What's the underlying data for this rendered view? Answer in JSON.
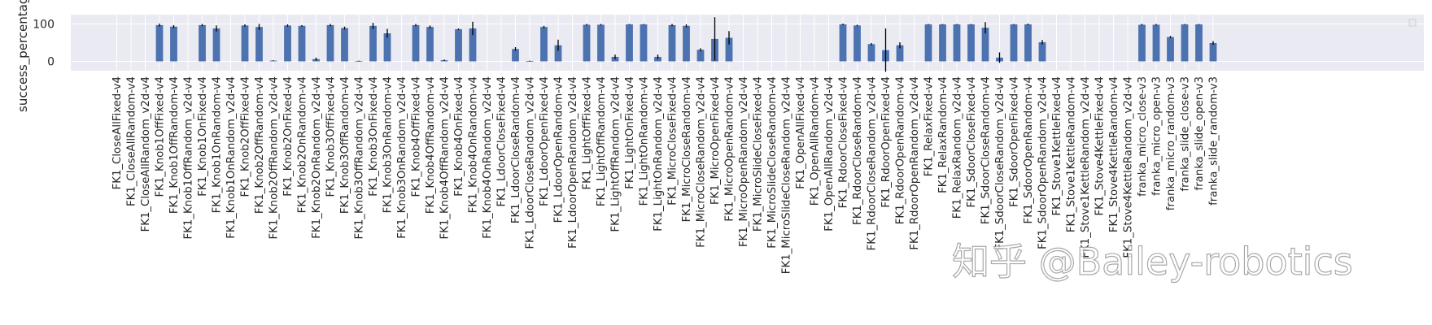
{
  "chart_data": {
    "type": "bar",
    "ylabel": "success_percentage",
    "yticks": [
      0,
      100
    ],
    "ylim": [
      -25,
      125
    ],
    "grid": true,
    "legend": "top-right (empty)",
    "bar_color": "#4c72b0",
    "error_color": "#000000",
    "background": "#eaeaf2",
    "categories": [
      "FK1_CloseAllFixed-v4",
      "FK1_CloseAllRandom-v4",
      "FK1_CloseAllRandom_v2d-v4",
      "FK1_Knob1OffFixed-v4",
      "FK1_Knob1OffRandom-v4",
      "FK1_Knob1OffRandom_v2d-v4",
      "FK1_Knob1OnFixed-v4",
      "FK1_Knob1OnRandom-v4",
      "FK1_Knob1OnRandom_v2d-v4",
      "FK1_Knob2OffFixed-v4",
      "FK1_Knob2OffRandom-v4",
      "FK1_Knob2OffRandom_v2d-v4",
      "FK1_Knob2OnFixed-v4",
      "FK1_Knob2OnRandom-v4",
      "FK1_Knob2OnRandom_v2d-v4",
      "FK1_Knob3OffFixed-v4",
      "FK1_Knob3OffRandom-v4",
      "FK1_Knob3OffRandom_v2d-v4",
      "FK1_Knob3OnFixed-v4",
      "FK1_Knob3OnRandom-v4",
      "FK1_Knob3OnRandom_v2d-v4",
      "FK1_Knob4OffFixed-v4",
      "FK1_Knob4OffRandom-v4",
      "FK1_Knob4OffRandom_v2d-v4",
      "FK1_Knob4OnFixed-v4",
      "FK1_Knob4OnRandom-v4",
      "FK1_Knob4OnRandom_v2d-v4",
      "FK1_LdoorCloseFixed-v4",
      "FK1_LdoorCloseRandom-v4",
      "FK1_LdoorCloseRandom_v2d-v4",
      "FK1_LdoorOpenFixed-v4",
      "FK1_LdoorOpenRandom-v4",
      "FK1_LdoorOpenRandom_v2d-v4",
      "FK1_LightOffFixed-v4",
      "FK1_LightOffRandom-v4",
      "FK1_LightOffRandom_v2d-v4",
      "FK1_LightOnFixed-v4",
      "FK1_LightOnRandom-v4",
      "FK1_LightOnRandom_v2d-v4",
      "FK1_MicroCloseFixed-v4",
      "FK1_MicroCloseRandom-v4",
      "FK1_MicroCloseRandom_v2d-v4",
      "FK1_MicroOpenFixed-v4",
      "FK1_MicroOpenRandom-v4",
      "FK1_MicroOpenRandom_v2d-v4",
      "FK1_MicroSlideCloseFixed-v4",
      "FK1_MicroSlideCloseRandom-v4",
      "FK1_MicroSlideCloseRandom_v2d-v4",
      "FK1_OpenAllFixed-v4",
      "FK1_OpenAllRandom-v4",
      "FK1_OpenAllRandom_v2d-v4",
      "FK1_RdoorCloseFixed-v4",
      "FK1_RdoorCloseRandom-v4",
      "FK1_RdoorCloseRandom_v2d-v4",
      "FK1_RdoorOpenFixed-v4",
      "FK1_RdoorOpenRandom-v4",
      "FK1_RdoorOpenRandom_v2d-v4",
      "FK1_RelaxFixed-v4",
      "FK1_RelaxRandom-v4",
      "FK1_RelaxRandom_v2d-v4",
      "FK1_SdoorCloseFixed-v4",
      "FK1_SdoorCloseRandom-v4",
      "FK1_SdoorCloseRandom_v2d-v4",
      "FK1_SdoorOpenFixed-v4",
      "FK1_SdoorOpenRandom-v4",
      "FK1_SdoorOpenRandom_v2d-v4",
      "FK1_Stove1KettleFixed-v4",
      "FK1_Stove1KettleRandom-v4",
      "FK1_Stove1KettleRandom_v2d-v4",
      "FK1_Stove4KettleFixed-v4",
      "FK1_Stove4KettleRandom-v4",
      "FK1_Stove4KettleRandom_v2d-v4",
      "franka_micro_close-v3",
      "franka_micro_open-v3",
      "franka_micro_random-v3",
      "franka_slide_close-v3",
      "franka_slide_open-v3",
      "franka_slide_random-v3"
    ],
    "values": [
      0,
      0,
      0,
      97,
      93,
      0,
      97,
      88,
      0,
      96,
      92,
      2,
      96,
      95,
      6,
      97,
      89,
      1,
      95,
      75,
      0,
      97,
      92,
      3,
      86,
      88,
      0,
      0,
      33,
      1,
      92,
      43,
      0,
      98,
      98,
      12,
      99,
      99,
      12,
      97,
      95,
      31,
      60,
      63,
      0,
      0,
      0,
      0,
      0,
      0,
      0,
      99,
      96,
      46,
      30,
      43,
      0,
      99,
      99,
      99,
      99,
      90,
      10,
      99,
      99,
      51,
      0,
      0,
      0,
      0,
      0,
      0,
      98,
      98,
      65,
      99,
      99,
      49
    ],
    "errors": [
      0,
      0,
      0,
      4,
      4,
      0,
      3,
      8,
      0,
      3,
      8,
      1,
      3,
      2,
      4,
      3,
      4,
      1,
      8,
      12,
      0,
      3,
      4,
      2,
      2,
      18,
      0,
      0,
      5,
      1,
      3,
      15,
      0,
      2,
      2,
      6,
      1,
      1,
      6,
      3,
      4,
      4,
      58,
      18,
      0,
      0,
      0,
      0,
      0,
      0,
      0,
      2,
      2,
      3,
      58,
      8,
      0,
      1,
      1,
      1,
      1,
      15,
      14,
      1,
      2,
      6,
      0,
      0,
      0,
      0,
      0,
      0,
      2,
      2,
      3,
      1,
      1,
      5
    ]
  },
  "watermark": "知乎 @Bailey-robotics"
}
